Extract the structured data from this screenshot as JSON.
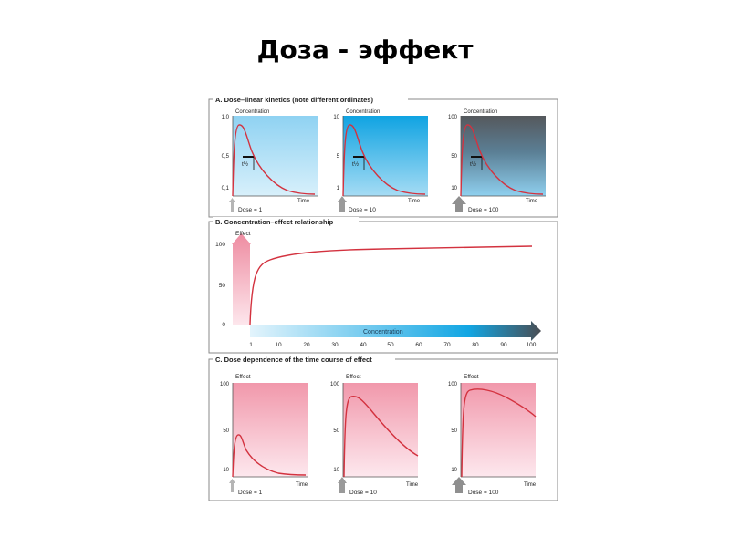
{
  "slide": {
    "title": "Доза - эффект"
  },
  "colors": {
    "curve": "#d3323f",
    "panel_border": "#8a8a8a",
    "kinetics_light": "#b5e2f7",
    "kinetics_mid": "#2bb5ea",
    "kinetics_dark": "#5f6267",
    "effect_pink": "#f08fa3",
    "effect_pale": "#fde4ea",
    "dose_arrow": "#9a9a9a"
  },
  "section_a": {
    "heading": "A. Dose–linear kinetics (note different ordinates)",
    "y_label": "Concentration",
    "x_label": "Time",
    "half_life_label": "t½",
    "charts": [
      {
        "dose_label": "Dose = 1",
        "ticks": [
          "1,0",
          "0,5",
          "0,1"
        ]
      },
      {
        "dose_label": "Dose = 10",
        "ticks": [
          "10",
          "5",
          "1"
        ]
      },
      {
        "dose_label": "Dose = 100",
        "ticks": [
          "100",
          "50",
          "10"
        ]
      }
    ]
  },
  "section_b": {
    "heading": "B. Concentration–effect relationship",
    "y_label": "Effect",
    "x_label": "Concentration",
    "y_ticks": [
      "100",
      "50",
      "0"
    ],
    "x_ticks": [
      "1",
      "10",
      "20",
      "30",
      "40",
      "50",
      "60",
      "70",
      "80",
      "90",
      "100"
    ]
  },
  "section_c": {
    "heading": "C. Dose dependence of the time course of effect",
    "y_label": "Effect",
    "x_label": "Time",
    "y_ticks": [
      "100",
      "50",
      "10"
    ],
    "charts": [
      {
        "dose_label": "Dose = 1"
      },
      {
        "dose_label": "Dose = 10"
      },
      {
        "dose_label": "Dose = 100"
      }
    ]
  },
  "chart_data": [
    {
      "type": "line",
      "title": "Dose = 1",
      "xlabel": "Time",
      "ylabel": "Concentration",
      "ylim": [
        0,
        1.0
      ],
      "series": [
        {
          "x": [
            0,
            0.02,
            0.05,
            0.1,
            0.2,
            0.3,
            0.4,
            0.5,
            0.6,
            0.7,
            0.8,
            0.9,
            1.0
          ],
          "values": [
            0,
            0.6,
            0.88,
            0.85,
            0.64,
            0.48,
            0.36,
            0.25,
            0.17,
            0.11,
            0.07,
            0.04,
            0.03
          ]
        }
      ]
    },
    {
      "type": "line",
      "title": "Dose = 10",
      "xlabel": "Time",
      "ylabel": "Concentration",
      "ylim": [
        0,
        10
      ],
      "series": [
        {
          "x": [
            0,
            0.02,
            0.05,
            0.1,
            0.2,
            0.3,
            0.4,
            0.5,
            0.6,
            0.7,
            0.8,
            0.9,
            1.0
          ],
          "values": [
            0,
            6,
            8.8,
            8.5,
            6.4,
            4.8,
            3.6,
            2.5,
            1.7,
            1.1,
            0.7,
            0.4,
            0.3
          ]
        }
      ]
    },
    {
      "type": "line",
      "title": "Dose = 100",
      "xlabel": "Time",
      "ylabel": "Concentration",
      "ylim": [
        0,
        100
      ],
      "series": [
        {
          "x": [
            0,
            0.02,
            0.05,
            0.1,
            0.2,
            0.3,
            0.4,
            0.5,
            0.6,
            0.7,
            0.8,
            0.9,
            1.0
          ],
          "values": [
            0,
            60,
            88,
            85,
            64,
            48,
            36,
            25,
            17,
            11,
            7,
            4,
            3
          ]
        }
      ]
    },
    {
      "type": "line",
      "xlabel": "Concentration",
      "ylabel": "Effect",
      "ylim": [
        0,
        100
      ],
      "series": [
        {
          "x": [
            1,
            2,
            3,
            5,
            7,
            10,
            15,
            20,
            30,
            40,
            50,
            60,
            70,
            80,
            90,
            100
          ],
          "values": [
            0,
            48,
            63,
            76,
            82,
            86,
            88,
            90,
            91,
            92,
            92.5,
            93,
            93.5,
            94,
            94.5,
            95
          ]
        }
      ]
    },
    {
      "type": "line",
      "title": "Dose = 1",
      "xlabel": "Time",
      "ylabel": "Effect",
      "ylim": [
        0,
        100
      ],
      "series": [
        {
          "x": [
            0,
            0.02,
            0.06,
            0.12,
            0.2,
            0.3,
            0.4,
            0.5,
            0.6,
            0.7,
            0.8,
            0.9,
            1.0
          ],
          "values": [
            0,
            38,
            47,
            43,
            33,
            24,
            18,
            14,
            11,
            9,
            7,
            6,
            6
          ]
        }
      ]
    },
    {
      "type": "line",
      "title": "Dose = 10",
      "xlabel": "Time",
      "ylabel": "Effect",
      "ylim": [
        0,
        100
      ],
      "series": [
        {
          "x": [
            0,
            0.02,
            0.06,
            0.12,
            0.2,
            0.3,
            0.4,
            0.5,
            0.6,
            0.7,
            0.8,
            0.9,
            1.0
          ],
          "values": [
            0,
            70,
            88,
            87,
            80,
            71,
            61,
            52,
            44,
            37,
            31,
            26,
            22
          ]
        }
      ]
    },
    {
      "type": "line",
      "title": "Dose = 100",
      "xlabel": "Time",
      "ylabel": "Effect",
      "ylim": [
        0,
        100
      ],
      "series": [
        {
          "x": [
            0,
            0.02,
            0.06,
            0.12,
            0.2,
            0.3,
            0.4,
            0.5,
            0.6,
            0.7,
            0.8,
            0.9,
            1.0
          ],
          "values": [
            0,
            82,
            93,
            95,
            95,
            94,
            92,
            89,
            86,
            82,
            77,
            72,
            66
          ]
        }
      ]
    }
  ]
}
